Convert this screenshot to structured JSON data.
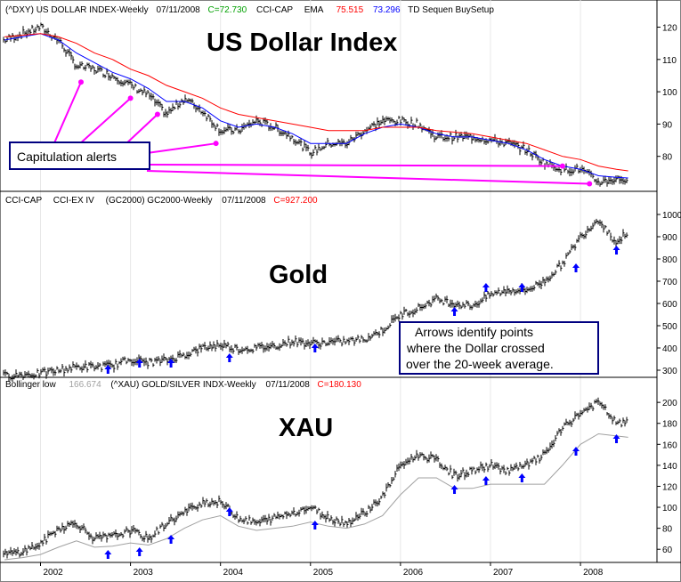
{
  "chart_data": [
    {
      "type": "line",
      "panel": "top",
      "header": {
        "symbol": "(^DXY) US DOLLAR INDEX-Weekly",
        "date": "07/11/2008",
        "close": "C=72.730",
        "ind1": "CCI-CAP",
        "ema_label": "EMA",
        "ema1": "75.515",
        "ema2": "73.296",
        "setup": "TD Sequen BuySetup"
      },
      "title": "US Dollar Index",
      "ylim": [
        70,
        124
      ],
      "yticks": [
        80,
        90,
        100,
        110,
        120
      ],
      "x": [
        2001.6,
        2001.8,
        2002.0,
        2002.2,
        2002.4,
        2002.6,
        2002.8,
        2003.0,
        2003.2,
        2003.4,
        2003.6,
        2003.8,
        2004.0,
        2004.2,
        2004.4,
        2004.6,
        2004.8,
        2005.0,
        2005.2,
        2005.4,
        2005.6,
        2005.8,
        2006.0,
        2006.2,
        2006.4,
        2006.6,
        2006.8,
        2007.0,
        2007.2,
        2007.4,
        2007.6,
        2007.8,
        2008.0,
        2008.2,
        2008.4,
        2008.53
      ],
      "series": [
        {
          "values": [
            116,
            118,
            120,
            116,
            108,
            107,
            105,
            102,
            99,
            93,
            98,
            94,
            88,
            88,
            91,
            89,
            86,
            81,
            84,
            84,
            88,
            91,
            91,
            90,
            86,
            86,
            86,
            85,
            84,
            82,
            78,
            76,
            76,
            72,
            73,
            72.73
          ]
        },
        {
          "values": [
            116,
            117,
            118,
            116,
            112,
            109,
            106,
            104,
            101,
            97,
            97,
            95,
            91,
            89,
            90,
            89,
            87,
            84,
            84,
            84,
            87,
            89,
            90,
            89,
            87,
            86,
            86,
            85,
            84,
            82,
            79,
            77,
            76,
            74,
            73.5,
            73.296
          ]
        },
        {
          "values": [
            117,
            117.5,
            118,
            117,
            115,
            112,
            110,
            107,
            105,
            102,
            100,
            98,
            95,
            93,
            92,
            91,
            90,
            89,
            88,
            88,
            88,
            89,
            89,
            89,
            88,
            87.5,
            87,
            86,
            85,
            84,
            82,
            80,
            79,
            77,
            76,
            75.515
          ]
        }
      ],
      "callout": "Capitulation alerts"
    },
    {
      "type": "line",
      "panel": "middle",
      "header": {
        "ind1": "CCI-CAP",
        "ind2": "CCI-EX IV",
        "symbol": "(GC2000) GC2000-Weekly",
        "date": "07/11/2008",
        "close": "C=927.200"
      },
      "title": "Gold",
      "ylim": [
        280,
        1040
      ],
      "yticks": [
        300,
        400,
        500,
        600,
        700,
        800,
        900,
        1000
      ],
      "x": [
        2001.6,
        2001.8,
        2002.0,
        2002.2,
        2002.4,
        2002.6,
        2002.8,
        2003.0,
        2003.2,
        2003.4,
        2003.6,
        2003.8,
        2004.0,
        2004.2,
        2004.4,
        2004.6,
        2004.8,
        2005.0,
        2005.2,
        2005.4,
        2005.6,
        2005.8,
        2006.0,
        2006.2,
        2006.4,
        2006.6,
        2006.8,
        2007.0,
        2007.2,
        2007.4,
        2007.6,
        2007.8,
        2008.0,
        2008.2,
        2008.4,
        2008.53
      ],
      "values": [
        275,
        280,
        285,
        300,
        315,
        315,
        320,
        350,
        335,
        345,
        370,
        400,
        415,
        395,
        400,
        410,
        430,
        420,
        425,
        430,
        440,
        480,
        550,
        580,
        620,
        600,
        590,
        640,
        660,
        660,
        700,
        780,
        900,
        980,
        870,
        927.2
      ],
      "callout_lines": [
        "Arrows identify points",
        "where the Dollar crossed",
        "over the 20-week average."
      ]
    },
    {
      "type": "line",
      "panel": "bottom",
      "header": {
        "label": "Bollinger low",
        "value": "166.674",
        "symbol": "(^XAU) GOLD/SILVER INDX-Weekly",
        "date": "07/11/2008",
        "close": "C=180.130"
      },
      "title": "XAU",
      "ylim": [
        50,
        212
      ],
      "yticks": [
        60,
        80,
        100,
        120,
        140,
        160,
        180,
        200
      ],
      "x": [
        2001.6,
        2001.8,
        2002.0,
        2002.2,
        2002.4,
        2002.6,
        2002.8,
        2003.0,
        2003.2,
        2003.4,
        2003.6,
        2003.8,
        2004.0,
        2004.2,
        2004.4,
        2004.6,
        2004.8,
        2005.0,
        2005.2,
        2005.4,
        2005.6,
        2005.8,
        2006.0,
        2006.2,
        2006.4,
        2006.6,
        2006.8,
        2007.0,
        2007.2,
        2007.4,
        2007.6,
        2007.8,
        2008.0,
        2008.2,
        2008.4,
        2008.53
      ],
      "series": [
        {
          "values": [
            55,
            58,
            65,
            80,
            85,
            70,
            72,
            78,
            70,
            85,
            95,
            105,
            105,
            90,
            85,
            90,
            95,
            100,
            90,
            85,
            95,
            110,
            140,
            150,
            145,
            130,
            135,
            140,
            135,
            140,
            150,
            175,
            190,
            200,
            180,
            180.13
          ]
        },
        {
          "values": [
            50,
            52,
            55,
            62,
            68,
            62,
            63,
            66,
            64,
            70,
            80,
            88,
            92,
            82,
            78,
            80,
            82,
            86,
            82,
            80,
            84,
            92,
            112,
            128,
            128,
            118,
            118,
            122,
            122,
            122,
            122,
            140,
            160,
            170,
            168,
            166.674
          ]
        }
      ]
    }
  ],
  "x_axis": {
    "labels": [
      "2002",
      "2003",
      "2004",
      "2005",
      "2006",
      "2007",
      "2008"
    ]
  },
  "colors": {
    "ema_short": "#0000ff",
    "ema_long": "#ff0000",
    "alert": "#ff00ff",
    "arrow": "#0000ff",
    "close_text": "#ff0000",
    "gray_value": "#a0a0a0",
    "box_border": "#000080"
  }
}
